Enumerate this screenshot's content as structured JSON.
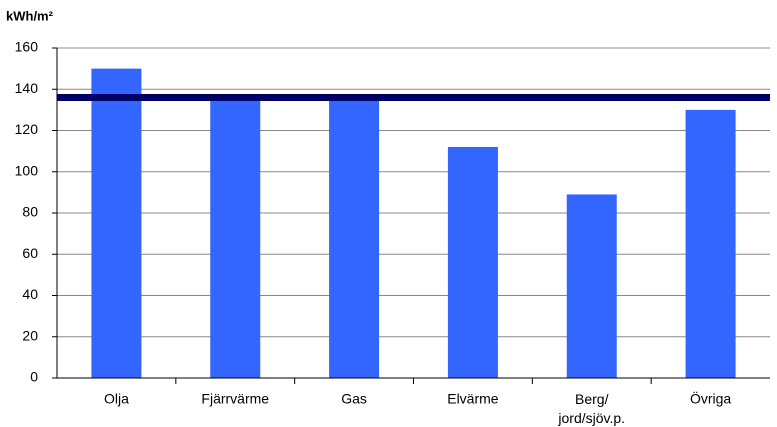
{
  "chart_data": {
    "type": "bar",
    "y_label": "kWh/m²",
    "categories": [
      "Olja",
      "Fjärrvärme",
      "Gas",
      "Elvärme",
      "Berg/\njord/sjöv.p.",
      "Övriga"
    ],
    "values": [
      150,
      137,
      136,
      112,
      89,
      130
    ],
    "color": "#3366ff",
    "reference_line": {
      "value": 136,
      "color": "#000066"
    },
    "ylim": [
      0,
      160
    ],
    "yticks": [
      0,
      20,
      40,
      60,
      80,
      100,
      120,
      140,
      160
    ],
    "grid": true
  }
}
